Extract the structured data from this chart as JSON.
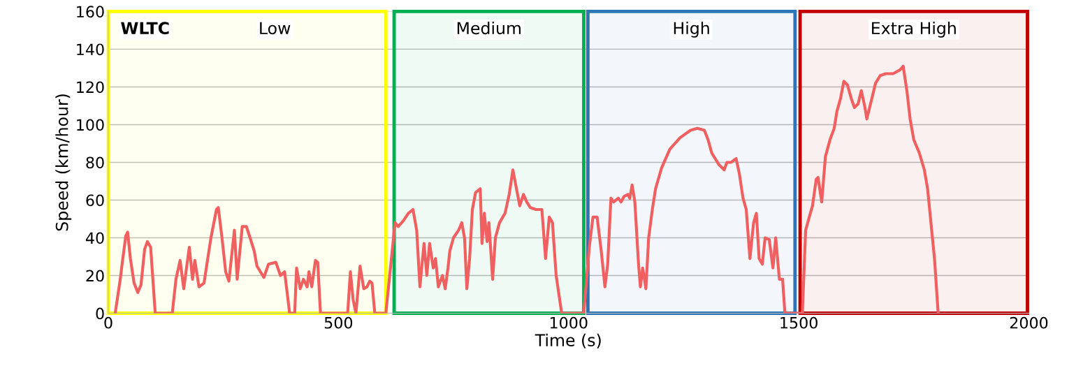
{
  "chart_data": {
    "type": "line",
    "xlabel": "Time (s)",
    "ylabel": "Speed (km/hour)",
    "xlim": [
      0,
      2000
    ],
    "xticks": [
      0,
      500,
      1000,
      1500,
      2000
    ],
    "ylim": [
      0,
      160
    ],
    "yticks": [
      0,
      20,
      40,
      60,
      80,
      100,
      120,
      140,
      160
    ],
    "grid": "y",
    "marker": "none",
    "line_style": "solid",
    "annotations": [
      "WLTC"
    ],
    "bands": [
      {
        "axis": "x",
        "from": 0,
        "to": 603,
        "label": "Low",
        "color": "#ffff00"
      },
      {
        "axis": "x",
        "from": 621,
        "to": 1033,
        "label": "Medium",
        "color": "#00b050"
      },
      {
        "axis": "x",
        "from": 1042,
        "to": 1492,
        "label": "High",
        "color": "#2e75b6"
      },
      {
        "axis": "x",
        "from": 1503,
        "to": 1997,
        "label": "Extra High",
        "color": "#c00000"
      }
    ],
    "series": [
      {
        "color": "#f06060",
        "x": [
          15,
          26,
          30,
          38,
          42,
          48,
          56,
          64,
          71,
          79,
          85,
          92,
          102,
          139,
          147,
          156,
          164,
          171,
          176,
          183,
          188,
          197,
          208,
          223,
          235,
          239,
          247,
          255,
          262,
          274,
          280,
          291,
          300,
          308,
          317,
          323,
          338,
          348,
          364,
          374,
          383,
          394,
          405,
          409,
          417,
          424,
          432,
          436,
          442,
          450,
          455,
          461,
          520,
          526,
          532,
          538,
          547,
          555,
          562,
          568,
          573,
          579,
          603,
          623,
          630,
          641,
          652,
          662,
          670,
          677,
          686,
          692,
          698,
          706,
          711,
          717,
          726,
          732,
          738,
          742,
          750,
          761,
          768,
          774,
          779,
          785,
          791,
          798,
          808,
          812,
          817,
          823,
          827,
          835,
          841,
          850,
          862,
          871,
          879,
          886,
          894,
          902,
          909,
          917,
          929,
          942,
          950,
          958,
          965,
          973,
          985,
          1033,
          1045,
          1053,
          1062,
          1071,
          1079,
          1085,
          1092,
          1098,
          1108,
          1114,
          1121,
          1129,
          1133,
          1138,
          1144,
          1152,
          1156,
          1161,
          1168,
          1174,
          1182,
          1189,
          1202,
          1220,
          1242,
          1265,
          1280,
          1295,
          1303,
          1311,
          1326,
          1338,
          1344,
          1353,
          1364,
          1371,
          1379,
          1386,
          1394,
          1402,
          1408,
          1414,
          1421,
          1427,
          1436,
          1444,
          1450,
          1458,
          1465,
          1470,
          1492,
          1508,
          1515,
          1523,
          1530,
          1538,
          1542,
          1550,
          1558,
          1568,
          1577,
          1583,
          1591,
          1598,
          1606,
          1614,
          1621,
          1629,
          1636,
          1644,
          1648,
          1659,
          1667,
          1677,
          1689,
          1705,
          1720,
          1727,
          1735,
          1742,
          1750,
          1762,
          1773,
          1780,
          1795,
          1803
        ],
        "values": [
          0,
          18,
          26,
          41,
          43,
          29,
          16,
          11,
          15,
          34,
          38,
          35,
          0,
          0,
          18,
          28,
          13,
          26,
          35,
          18,
          28,
          14,
          16,
          40,
          55,
          56,
          40,
          22,
          17,
          44,
          18,
          46,
          46,
          40,
          33,
          25,
          19,
          26,
          27,
          20,
          22,
          0,
          0,
          24,
          13,
          18,
          14,
          22,
          14,
          28,
          27,
          0,
          0,
          22,
          7,
          0,
          25,
          13,
          14,
          17,
          16,
          0,
          0,
          48,
          46,
          49,
          53,
          55,
          44,
          14,
          37,
          20,
          37,
          24,
          29,
          14,
          20,
          13,
          24,
          33,
          40,
          44,
          48,
          40,
          13,
          29,
          55,
          64,
          66,
          37,
          53,
          38,
          48,
          18,
          40,
          48,
          53,
          63,
          76,
          67,
          57,
          63,
          59,
          56,
          55,
          55,
          29,
          51,
          48,
          20,
          0,
          0,
          35,
          51,
          51,
          33,
          14,
          26,
          61,
          59,
          61,
          59,
          62,
          63,
          61,
          68,
          59,
          26,
          14,
          24,
          13,
          40,
          55,
          66,
          77,
          87,
          93,
          97,
          98,
          97,
          92,
          85,
          79,
          76,
          80,
          80,
          82,
          74,
          61,
          55,
          29,
          48,
          53,
          29,
          26,
          40,
          39,
          24,
          40,
          18,
          18,
          0,
          0,
          0,
          44,
          51,
          57,
          71,
          72,
          59,
          83,
          92,
          98,
          107,
          114,
          123,
          121,
          114,
          109,
          111,
          118,
          109,
          103,
          114,
          122,
          126,
          127,
          127,
          129,
          131,
          118,
          103,
          92,
          85,
          76,
          66,
          29,
          0
        ]
      }
    ]
  }
}
